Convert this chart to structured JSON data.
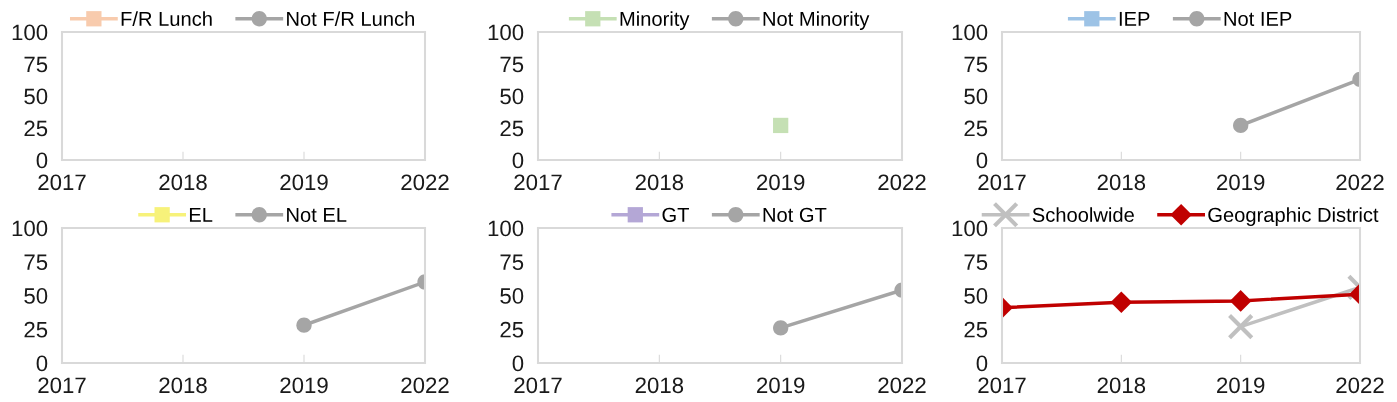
{
  "chart_data": [
    {
      "type": "line",
      "categories": [
        "2017",
        "2018",
        "2019",
        "2022"
      ],
      "ylim": [
        0,
        100
      ],
      "yticks": [
        0,
        25,
        50,
        75,
        100
      ],
      "grid": false,
      "legend": "top",
      "series": [
        {
          "name": "F/R Lunch",
          "color": "#f8cbad",
          "marker": "square",
          "values": [
            null,
            null,
            null,
            null
          ]
        },
        {
          "name": "Not F/R Lunch",
          "color": "#a5a5a5",
          "marker": "circle",
          "values": [
            null,
            null,
            null,
            null
          ]
        }
      ]
    },
    {
      "type": "line",
      "categories": [
        "2017",
        "2018",
        "2019",
        "2022"
      ],
      "ylim": [
        0,
        100
      ],
      "yticks": [
        0,
        25,
        50,
        75,
        100
      ],
      "grid": false,
      "legend": "top",
      "series": [
        {
          "name": "Minority",
          "color": "#c5e0b4",
          "marker": "square",
          "values": [
            null,
            null,
            27,
            null
          ]
        },
        {
          "name": "Not Minority",
          "color": "#a5a5a5",
          "marker": "circle",
          "values": [
            null,
            null,
            null,
            null
          ]
        }
      ]
    },
    {
      "type": "line",
      "categories": [
        "2017",
        "2018",
        "2019",
        "2022"
      ],
      "ylim": [
        0,
        100
      ],
      "yticks": [
        0,
        25,
        50,
        75,
        100
      ],
      "grid": false,
      "legend": "top",
      "series": [
        {
          "name": "IEP",
          "color": "#9dc3e6",
          "marker": "square",
          "values": [
            null,
            null,
            null,
            null
          ]
        },
        {
          "name": "Not IEP",
          "color": "#a5a5a5",
          "marker": "circle",
          "values": [
            null,
            null,
            27,
            63
          ]
        }
      ]
    },
    {
      "type": "line",
      "categories": [
        "2017",
        "2018",
        "2019",
        "2022"
      ],
      "ylim": [
        0,
        100
      ],
      "yticks": [
        0,
        25,
        50,
        75,
        100
      ],
      "grid": false,
      "legend": "top",
      "series": [
        {
          "name": "EL",
          "color": "#f7f27a",
          "marker": "square",
          "values": [
            null,
            null,
            null,
            null
          ]
        },
        {
          "name": "Not EL",
          "color": "#a5a5a5",
          "marker": "circle",
          "values": [
            null,
            null,
            28,
            60
          ]
        }
      ]
    },
    {
      "type": "line",
      "categories": [
        "2017",
        "2018",
        "2019",
        "2022"
      ],
      "ylim": [
        0,
        100
      ],
      "yticks": [
        0,
        25,
        50,
        75,
        100
      ],
      "grid": false,
      "legend": "top",
      "series": [
        {
          "name": "GT",
          "color": "#b4a7d6",
          "marker": "square",
          "values": [
            null,
            null,
            null,
            null
          ]
        },
        {
          "name": "Not GT",
          "color": "#a5a5a5",
          "marker": "circle",
          "values": [
            null,
            null,
            26,
            54
          ]
        }
      ]
    },
    {
      "type": "line",
      "categories": [
        "2017",
        "2018",
        "2019",
        "2022"
      ],
      "ylim": [
        0,
        100
      ],
      "yticks": [
        0,
        25,
        50,
        75,
        100
      ],
      "grid": false,
      "legend": "top",
      "series": [
        {
          "name": "Schoolwide",
          "color": "#c0c0c0",
          "marker": "cross",
          "values": [
            null,
            null,
            27,
            56
          ]
        },
        {
          "name": "Geographic District",
          "color": "#c00000",
          "marker": "diamond",
          "values": [
            41,
            45,
            46,
            51
          ]
        }
      ]
    }
  ]
}
